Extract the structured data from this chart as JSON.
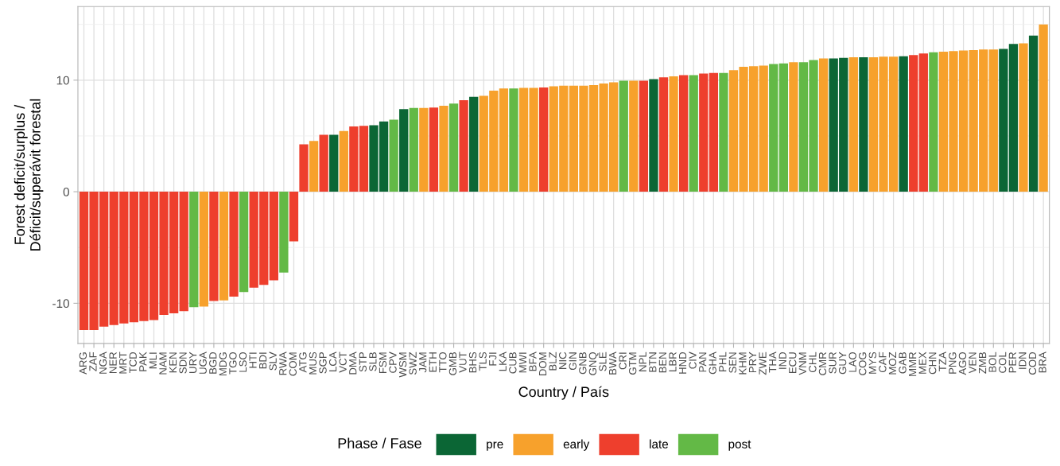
{
  "chart_data": {
    "type": "bar",
    "xlabel": "Country / País",
    "ylabel": "Forest deficit/surplus /\nDéficit/superávit forestal",
    "legend_title": "Phase / Fase",
    "categories": [
      "ARG",
      "ZAF",
      "NGA",
      "NER",
      "MRT",
      "TCD",
      "PAK",
      "MLI",
      "NAM",
      "KEN",
      "SDN",
      "URY",
      "UGA",
      "BGD",
      "MDG",
      "TGO",
      "LSO",
      "HTI",
      "BDI",
      "SLV",
      "RWA",
      "COM",
      "ATG",
      "MUS",
      "SGP",
      "LCA",
      "VCT",
      "DMA",
      "STP",
      "SLB",
      "FSM",
      "CPV",
      "WSM",
      "SWZ",
      "JAM",
      "ETH",
      "TTO",
      "GMB",
      "VUT",
      "BHS",
      "TLS",
      "FJI",
      "LKA",
      "CUB",
      "MWI",
      "BFA",
      "DOM",
      "BLZ",
      "NIC",
      "GIN",
      "GNB",
      "GNQ",
      "SLE",
      "BWA",
      "CRI",
      "GTM",
      "NPL",
      "BTN",
      "BEN",
      "LBR",
      "HND",
      "CIV",
      "PAN",
      "GHA",
      "PHL",
      "SEN",
      "KHM",
      "PRY",
      "ZWE",
      "THA",
      "IND",
      "ECU",
      "VNM",
      "CHL",
      "CMR",
      "SUR",
      "GUY",
      "LAO",
      "COG",
      "MYS",
      "CAF",
      "MOZ",
      "GAB",
      "MMR",
      "MEX",
      "CHN",
      "TZA",
      "PNG",
      "AGO",
      "VEN",
      "ZMB",
      "BOL",
      "COL",
      "PER",
      "IDN",
      "COD",
      "BRA"
    ],
    "series": [
      {
        "name": "pre",
        "color": "#0b6635",
        "values": [
          null,
          null,
          null,
          null,
          null,
          null,
          null,
          null,
          null,
          null,
          null,
          null,
          null,
          null,
          null,
          null,
          null,
          null,
          null,
          null,
          null,
          null,
          null,
          null,
          null,
          5.1,
          null,
          null,
          null,
          5.95,
          6.3,
          null,
          7.4,
          null,
          null,
          null,
          null,
          null,
          null,
          8.5,
          null,
          null,
          null,
          null,
          null,
          null,
          null,
          null,
          null,
          null,
          null,
          null,
          null,
          null,
          null,
          null,
          null,
          10.1,
          null,
          null,
          null,
          null,
          null,
          null,
          null,
          null,
          null,
          null,
          null,
          null,
          null,
          null,
          null,
          null,
          null,
          11.95,
          12.0,
          null,
          12.05,
          null,
          null,
          null,
          12.15,
          null,
          null,
          null,
          null,
          null,
          null,
          null,
          null,
          null,
          12.8,
          13.25,
          null,
          14.0,
          null
        ]
      },
      {
        "name": "early",
        "color": "#f7a12c",
        "values": [
          null,
          null,
          null,
          null,
          null,
          null,
          null,
          null,
          null,
          null,
          null,
          null,
          -10.3,
          null,
          -9.75,
          null,
          null,
          null,
          null,
          null,
          null,
          null,
          null,
          4.55,
          null,
          null,
          5.45,
          null,
          null,
          null,
          null,
          null,
          null,
          null,
          7.5,
          null,
          7.7,
          null,
          null,
          null,
          8.6,
          9.05,
          9.25,
          null,
          9.3,
          9.3,
          null,
          9.45,
          9.5,
          9.5,
          9.5,
          9.55,
          9.7,
          9.8,
          null,
          9.95,
          null,
          null,
          null,
          10.35,
          null,
          null,
          null,
          null,
          null,
          10.9,
          11.2,
          11.25,
          11.3,
          null,
          null,
          11.6,
          null,
          null,
          11.95,
          null,
          null,
          12.05,
          null,
          12.05,
          12.1,
          12.1,
          null,
          null,
          null,
          null,
          12.55,
          12.6,
          12.65,
          12.7,
          12.75,
          12.75,
          null,
          null,
          13.3,
          null,
          15.0
        ]
      },
      {
        "name": "late",
        "color": "#ee3f2d",
        "values": [
          -12.4,
          -12.4,
          -12.1,
          -11.95,
          -11.8,
          -11.7,
          -11.6,
          -11.5,
          -11.05,
          -10.9,
          -10.7,
          null,
          null,
          -9.8,
          null,
          -9.4,
          null,
          -8.6,
          -8.35,
          -7.95,
          null,
          -4.45,
          4.25,
          null,
          5.1,
          null,
          null,
          5.85,
          5.9,
          null,
          null,
          null,
          null,
          null,
          null,
          7.55,
          null,
          null,
          8.2,
          null,
          null,
          null,
          null,
          null,
          null,
          null,
          9.35,
          null,
          null,
          null,
          null,
          null,
          null,
          null,
          null,
          null,
          9.95,
          null,
          10.25,
          null,
          10.45,
          null,
          10.6,
          10.65,
          null,
          null,
          null,
          null,
          null,
          null,
          null,
          null,
          null,
          null,
          null,
          null,
          null,
          null,
          null,
          null,
          null,
          null,
          null,
          12.25,
          12.4,
          null,
          null,
          null,
          null,
          null,
          null,
          null,
          null,
          null,
          null,
          null,
          null
        ]
      },
      {
        "name": "post",
        "color": "#63b946",
        "values": [
          null,
          null,
          null,
          null,
          null,
          null,
          null,
          null,
          null,
          null,
          null,
          -10.35,
          null,
          null,
          null,
          null,
          -9.0,
          null,
          null,
          null,
          -7.25,
          null,
          null,
          null,
          null,
          null,
          null,
          null,
          null,
          null,
          null,
          6.45,
          null,
          7.5,
          null,
          null,
          null,
          7.9,
          null,
          null,
          null,
          null,
          null,
          9.25,
          null,
          null,
          null,
          null,
          null,
          null,
          null,
          null,
          null,
          null,
          9.95,
          null,
          null,
          null,
          null,
          null,
          null,
          10.45,
          null,
          null,
          10.65,
          null,
          null,
          null,
          null,
          11.45,
          11.5,
          null,
          11.6,
          11.8,
          null,
          null,
          null,
          null,
          null,
          null,
          null,
          null,
          null,
          null,
          null,
          12.5,
          null,
          null,
          null,
          null,
          null,
          null,
          null,
          null,
          null,
          null,
          null
        ]
      }
    ],
    "ylim": [
      -13.6,
      16.6
    ],
    "yticks": [
      -10,
      {
        "value": -5,
        "label": null
      },
      0,
      {
        "value": 5,
        "label": null
      },
      10,
      {
        "value": 15,
        "label": null
      }
    ],
    "grid": true,
    "legend": "bottom"
  }
}
